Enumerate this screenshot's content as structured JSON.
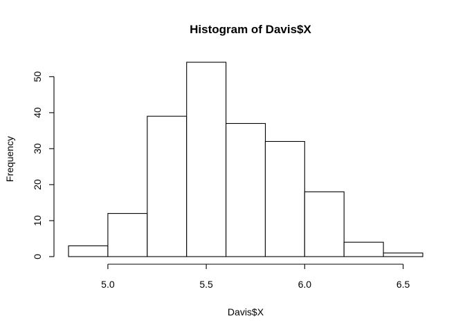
{
  "chart_data": {
    "type": "bar",
    "title": "Histogram of Davis$X",
    "xlabel": "Davis$X",
    "ylabel": "Frequency",
    "bins": [
      {
        "x0": 4.8,
        "x1": 5.0,
        "count": 3
      },
      {
        "x0": 5.0,
        "x1": 5.2,
        "count": 12
      },
      {
        "x0": 5.2,
        "x1": 5.4,
        "count": 39
      },
      {
        "x0": 5.4,
        "x1": 5.6,
        "count": 54
      },
      {
        "x0": 5.6,
        "x1": 5.8,
        "count": 37
      },
      {
        "x0": 5.8,
        "x1": 6.0,
        "count": 32
      },
      {
        "x0": 6.0,
        "x1": 6.2,
        "count": 18
      },
      {
        "x0": 6.2,
        "x1": 6.4,
        "count": 4
      },
      {
        "x0": 6.4,
        "x1": 6.6,
        "count": 1
      }
    ],
    "xlim": [
      4.8,
      6.6
    ],
    "ylim": [
      0,
      54
    ],
    "x_ticks": [
      5.0,
      5.5,
      6.0,
      6.5
    ],
    "x_tick_labels": [
      "5.0",
      "5.5",
      "6.0",
      "6.5"
    ],
    "y_ticks": [
      0,
      10,
      20,
      30,
      40,
      50
    ],
    "y_tick_labels": [
      "0",
      "10",
      "20",
      "30",
      "40",
      "50"
    ],
    "bar_fill": "#ffffff",
    "bar_stroke": "#000000",
    "grid": false,
    "legend": "none"
  }
}
